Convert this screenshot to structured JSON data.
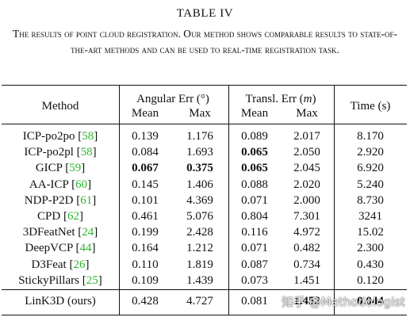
{
  "table_label": "TABLE IV",
  "caption": "The results of point cloud registration. Our method shows comparable results to state-of-the-art methods and can be used to real-time registration task.",
  "header": {
    "method": "Method",
    "angular_group": "Angular Err (°)",
    "transl_group_prefix": "Transl. Err (",
    "transl_group_unit": "m",
    "transl_group_suffix": ")",
    "time": "Time (s)",
    "mean": "Mean",
    "max": "Max"
  },
  "rows": [
    {
      "method": "ICP-po2po",
      "ref": "58",
      "ang_mean": "0.139",
      "ang_max": "1.176",
      "tr_mean": "0.089",
      "tr_max": "2.017",
      "time": "8.170",
      "bold": []
    },
    {
      "method": "ICP-po2pl",
      "ref": "58",
      "ang_mean": "0.084",
      "ang_max": "1.693",
      "tr_mean": "0.065",
      "tr_max": "2.050",
      "time": "2.920",
      "bold": [
        "tr_mean"
      ]
    },
    {
      "method": "GICP",
      "ref": "59",
      "ang_mean": "0.067",
      "ang_max": "0.375",
      "tr_mean": "0.065",
      "tr_max": "2.045",
      "time": "6.920",
      "bold": [
        "ang_mean",
        "ang_max",
        "tr_mean"
      ]
    },
    {
      "method": "AA-ICP",
      "ref": "60",
      "ang_mean": "0.145",
      "ang_max": "1.406",
      "tr_mean": "0.088",
      "tr_max": "2.020",
      "time": "5.240",
      "bold": []
    },
    {
      "method": "NDP-P2D",
      "ref": "61",
      "ang_mean": "0.101",
      "ang_max": "4.369",
      "tr_mean": "0.071",
      "tr_max": "2.000",
      "time": "8.730",
      "bold": []
    },
    {
      "method": "CPD",
      "ref": "62",
      "ang_mean": "0.461",
      "ang_max": "5.076",
      "tr_mean": "0.804",
      "tr_max": "7.301",
      "time": "3241",
      "bold": []
    },
    {
      "method": "3DFeatNet",
      "ref": "24",
      "ang_mean": "0.199",
      "ang_max": "2.428",
      "tr_mean": "0.116",
      "tr_max": "4.972",
      "time": "15.02",
      "bold": []
    },
    {
      "method": "DeepVCP",
      "ref": "44",
      "ang_mean": "0.164",
      "ang_max": "1.212",
      "tr_mean": "0.071",
      "tr_max": "0.482",
      "time": "2.300",
      "bold": []
    },
    {
      "method": "D3Feat",
      "ref": "26",
      "ang_mean": "0.110",
      "ang_max": "1.819",
      "tr_mean": "0.087",
      "tr_max": "0.734",
      "time": "0.430",
      "bold": []
    },
    {
      "method": "StickyPillars",
      "ref": "25",
      "ang_mean": "0.109",
      "ang_max": "1.439",
      "tr_mean": "0.073",
      "tr_max": "1.451",
      "time": "0.120",
      "bold": []
    }
  ],
  "ours": {
    "method": "LinK3D (ours)",
    "ang_mean": "0.428",
    "ang_max": "4.727",
    "tr_mean": "0.081",
    "tr_max": "1.452",
    "time": "0.044",
    "bold": [
      "tr_max",
      "time"
    ]
  },
  "watermark": "知乎 @Methodologist"
}
